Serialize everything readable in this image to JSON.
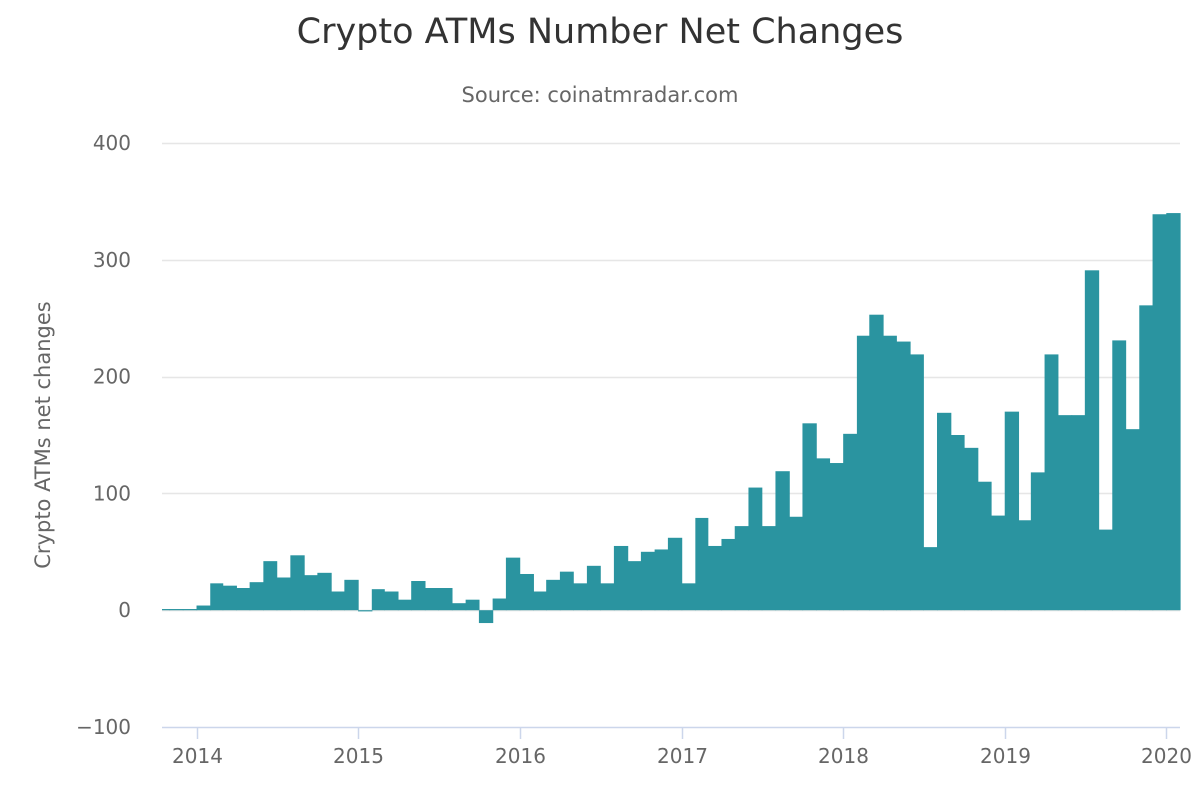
{
  "chart_data": {
    "type": "bar",
    "title": "Crypto ATMs Number Net Changes",
    "subtitle": "Source: coinatmradar.com",
    "ylabel": "Crypto ATMs net changes",
    "xlabel": "",
    "ylim": [
      -100,
      400
    ],
    "xlim": [
      "2013-10-15",
      "2020-02-01"
    ],
    "y_ticks": [
      -100,
      0,
      100,
      200,
      300,
      400
    ],
    "x_ticks": [
      {
        "date": "2014-01-01",
        "label": "2014"
      },
      {
        "date": "2015-01-01",
        "label": "2015"
      },
      {
        "date": "2016-01-01",
        "label": "2016"
      },
      {
        "date": "2017-01-01",
        "label": "2017"
      },
      {
        "date": "2018-01-01",
        "label": "2018"
      },
      {
        "date": "2019-01-01",
        "label": "2019"
      },
      {
        "date": "2020-01-01",
        "label": "2020"
      }
    ],
    "grid": true,
    "legend": false,
    "bar_color": "#2a94a0",
    "grid_color": "#e6e6e6",
    "axis_color": "#ccd6eb",
    "series": [
      {
        "x": [
          "2013-10",
          "2013-11",
          "2013-12",
          "2014-01",
          "2014-02",
          "2014-03",
          "2014-04",
          "2014-05",
          "2014-06",
          "2014-07",
          "2014-08",
          "2014-09",
          "2014-10",
          "2014-11",
          "2014-12",
          "2015-01",
          "2015-02",
          "2015-03",
          "2015-04",
          "2015-05",
          "2015-06",
          "2015-07",
          "2015-08",
          "2015-09",
          "2015-10",
          "2015-11",
          "2015-12",
          "2016-01",
          "2016-02",
          "2016-03",
          "2016-04",
          "2016-05",
          "2016-06",
          "2016-07",
          "2016-08",
          "2016-09",
          "2016-10",
          "2016-11",
          "2016-12",
          "2017-01",
          "2017-02",
          "2017-03",
          "2017-04",
          "2017-05",
          "2017-06",
          "2017-07",
          "2017-08",
          "2017-09",
          "2017-10",
          "2017-11",
          "2017-12",
          "2018-01",
          "2018-02",
          "2018-03",
          "2018-04",
          "2018-05",
          "2018-06",
          "2018-07",
          "2018-08",
          "2018-09",
          "2018-10",
          "2018-11",
          "2018-12",
          "2019-01",
          "2019-02",
          "2019-03",
          "2019-04",
          "2019-05",
          "2019-06",
          "2019-07",
          "2019-08",
          "2019-09",
          "2019-10",
          "2019-11",
          "2019-12",
          "2020-01"
        ],
        "values": [
          1,
          1,
          1,
          4,
          23,
          21,
          19,
          24,
          42,
          28,
          47,
          30,
          32,
          16,
          26,
          0,
          18,
          16,
          9,
          25,
          19,
          19,
          6,
          9,
          -11,
          10,
          45,
          31,
          16,
          26,
          33,
          23,
          38,
          23,
          55,
          42,
          50,
          52,
          62,
          23,
          79,
          55,
          61,
          72,
          105,
          72,
          119,
          80,
          160,
          130,
          126,
          151,
          235,
          253,
          235,
          230,
          219,
          54,
          169,
          150,
          139,
          110,
          81,
          170,
          77,
          118,
          219,
          167,
          167,
          291,
          69,
          231,
          155,
          261,
          339,
          340
        ]
      }
    ]
  }
}
